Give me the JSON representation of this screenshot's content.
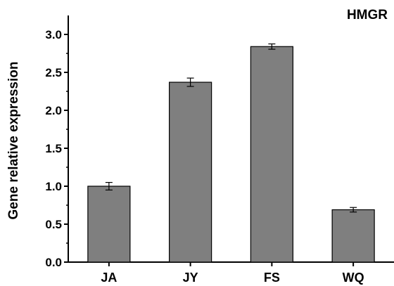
{
  "chart_data": {
    "type": "bar",
    "title": "HMGR",
    "xlabel": "",
    "ylabel": "Gene relative expression",
    "categories": [
      "JA",
      "JY",
      "FS",
      "WQ"
    ],
    "values": [
      1.0,
      2.37,
      2.84,
      0.69
    ],
    "errors": [
      0.05,
      0.055,
      0.035,
      0.03
    ],
    "ylim": [
      0,
      3.25
    ],
    "yticks": [
      "0.0",
      "0.5",
      "1.0",
      "1.5",
      "2.0",
      "2.5",
      "3.0"
    ],
    "grid": false,
    "bar_color": "#7f7f7f",
    "bar_stroke": "#000000"
  }
}
